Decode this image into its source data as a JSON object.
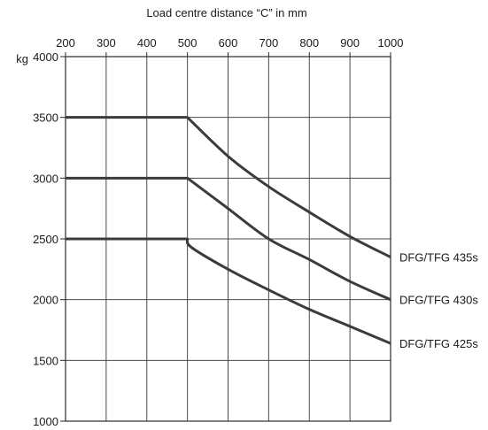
{
  "chart_data": {
    "type": "line",
    "title": "Load centre distance “C” in mm",
    "y_unit": "kg",
    "x_ticks": [
      200,
      300,
      400,
      500,
      600,
      700,
      800,
      900,
      1000
    ],
    "y_ticks": [
      1000,
      1500,
      2000,
      2500,
      3000,
      3500,
      4000
    ],
    "xlim": [
      200,
      1000
    ],
    "ylim": [
      1000,
      4000
    ],
    "x_axis_position": "top",
    "grid": true,
    "line_color": "#3d3b3a",
    "series": [
      {
        "name": "DFG/TFG 435s",
        "points": [
          [
            200,
            3500
          ],
          [
            500,
            3500
          ],
          [
            600,
            3180
          ],
          [
            700,
            2930
          ],
          [
            800,
            2720
          ],
          [
            900,
            2520
          ],
          [
            1000,
            2350
          ]
        ]
      },
      {
        "name": "DFG/TFG 430s",
        "points": [
          [
            200,
            3000
          ],
          [
            500,
            3000
          ],
          [
            600,
            2750
          ],
          [
            700,
            2500
          ],
          [
            800,
            2330
          ],
          [
            900,
            2150
          ],
          [
            1000,
            2000
          ]
        ]
      },
      {
        "name": "DFG/TFG 425s",
        "points": [
          [
            200,
            2500
          ],
          [
            500,
            2500
          ],
          [
            510,
            2430
          ],
          [
            600,
            2250
          ],
          [
            700,
            2080
          ],
          [
            800,
            1920
          ],
          [
            900,
            1780
          ],
          [
            1000,
            1640
          ]
        ]
      }
    ]
  }
}
